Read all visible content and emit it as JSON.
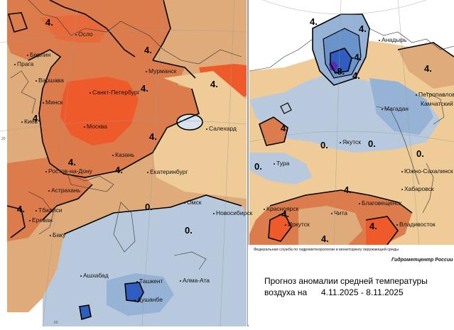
{
  "footer": {
    "agency": "Федеральная служба по гидрометеорологии и мониторингу окружающей среды",
    "center": "Гидрометцентр России",
    "title_line1": "Прогноз аномалии средней температуры",
    "title_line2": "воздуха на",
    "period": "4.11.2025  -  8.11.2025"
  },
  "colors": {
    "strong_warm": "#ef5a2a",
    "warm": "#dc7c4c",
    "mild_warm": "#e0ab7a",
    "neutral": "#eecb97",
    "cool": "#b9c9dd",
    "cold": "#96b3d6",
    "colder": "#6a93cc",
    "coldest": "#2f5ec0",
    "extreme_cold": "#5a2ea8"
  },
  "map_left": {
    "cities": [
      "Осло",
      "Берлин",
      "Прага",
      "Варшава",
      "Мурманск",
      "Санкт-Петербург",
      "Минск",
      "Киев",
      "Москва",
      "Салехард",
      "Казань",
      "Ростов-на-Дону",
      "Екатеринбург",
      "Астрахань",
      "Тбилиси",
      "Ереван",
      "Баку",
      "Омск",
      "Новосибирск",
      "Ашхабад",
      "Ташкент",
      "Алма-Ата",
      "Душанбе"
    ],
    "isolines": [
      "4.",
      "4.",
      "4.",
      "4.",
      "4.",
      "4.",
      "4.",
      "4.",
      "4.",
      "0.",
      "0."
    ],
    "coords": [
      "20",
      "60"
    ]
  },
  "map_right": {
    "cities": [
      "Анадырь",
      "Петропавловск",
      "Камчатский",
      "Магадан",
      "Якутск",
      "Тура",
      "Южно-Сахалинск",
      "Хабаровск",
      "Благовещенск",
      "Владивосток",
      "Красноярск",
      "Чита",
      "Иркутск"
    ],
    "isolines": [
      "4.",
      "4.",
      "-8.",
      "-4.",
      "4.",
      "4.",
      "0.",
      "0.",
      "0.",
      "0.",
      "4.",
      "4.",
      "-4.",
      "4.",
      "4."
    ]
  }
}
